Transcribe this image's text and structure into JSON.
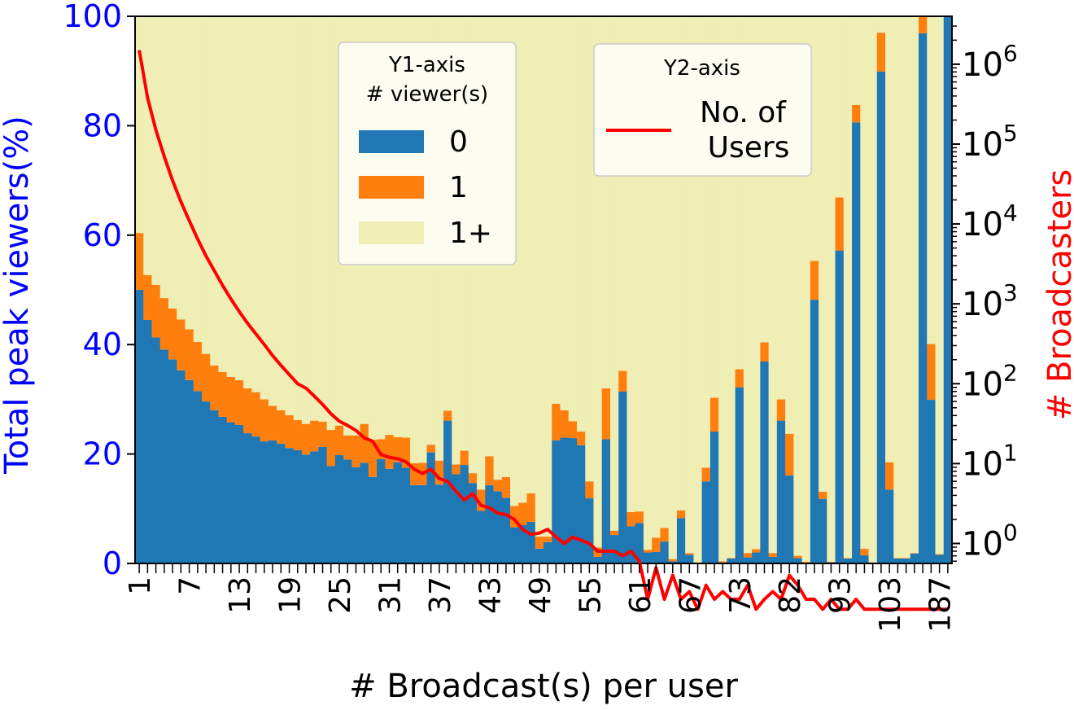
{
  "chart_data": {
    "type": "bar",
    "stacked": true,
    "xlabel": "# Broadcast(s) per user",
    "ylabel": "Total peak viewers(%)",
    "y2label": "# Broadcasters",
    "ylim": [
      0,
      100
    ],
    "y2lim_log10": [
      -0.25,
      6.6
    ],
    "y2scale": "log",
    "x_tick_labels": [
      "1",
      "7",
      "13",
      "19",
      "25",
      "31",
      "37",
      "43",
      "49",
      "55",
      "61",
      "67",
      "73",
      "82",
      "93",
      "103",
      "187"
    ],
    "x_tick_positions": [
      0,
      6,
      12,
      18,
      24,
      30,
      36,
      42,
      48,
      54,
      60,
      66,
      72,
      78,
      84,
      90,
      96
    ],
    "series": [
      {
        "name": "0",
        "color": "#1f77b4",
        "values": [
          50,
          44.5,
          41.3,
          39.1,
          37.3,
          35.3,
          33.5,
          31.5,
          29.6,
          28,
          26.8,
          25.8,
          25.3,
          23.8,
          23.2,
          22.3,
          22.5,
          21.9,
          21.1,
          20.7,
          19.9,
          20.5,
          21.3,
          17.8,
          19.8,
          19,
          17.6,
          18.4,
          15.8,
          19.1,
          17.3,
          18.5,
          17.5,
          14.3,
          14.3,
          20.3,
          14.4,
          26.1,
          16.3,
          18,
          14.7,
          9.6,
          14.3,
          13.2,
          12,
          6.6,
          7,
          7.6,
          2.7,
          3.9,
          22.5,
          23,
          22.9,
          21.6,
          11.9,
          1.2,
          22.7,
          5.2,
          31.4,
          6.8,
          7.4,
          2,
          2.1,
          4,
          0.4,
          8.3,
          1.6,
          0.1,
          15,
          24.1,
          0.2,
          0.9,
          32.2,
          1.1,
          2,
          36.9,
          1.2,
          26.1,
          16.1,
          1,
          0.1,
          48.2,
          11.8,
          0.2,
          57.2,
          0.9,
          80.6,
          1.5,
          0.1,
          89.9,
          13.5,
          0.9,
          0.9,
          1.8,
          96.9,
          29.9,
          1.6,
          100
        ]
      },
      {
        "name": "1",
        "color": "#ff7f0e",
        "values": [
          10.4,
          8.2,
          9.6,
          9.4,
          9.3,
          9.3,
          9.3,
          9,
          8.7,
          8.2,
          8.2,
          8.3,
          8.2,
          8.2,
          8.1,
          7.7,
          6.3,
          6.1,
          6,
          5.5,
          5.6,
          5.6,
          4.6,
          6.6,
          5.4,
          4.4,
          5.8,
          7.1,
          6.8,
          3.6,
          6.2,
          4.6,
          5.5,
          4,
          4.1,
          1.4,
          4.4,
          1.8,
          1.8,
          2.6,
          1.8,
          3.9,
          5.3,
          2.1,
          3.8,
          3.9,
          4.1,
          5.2,
          2.2,
          1,
          6.7,
          5,
          3.1,
          2.5,
          3.1,
          1.7,
          9.3,
          0.8,
          3.8,
          2.6,
          2.1,
          0.5,
          2.6,
          2.5,
          0.4,
          1.4,
          0.3,
          0.1,
          2.5,
          6.2,
          0.2,
          0.1,
          3.3,
          0.8,
          0.6,
          3.5,
          0.7,
          3.9,
          7.6,
          0.4,
          0.2,
          7.1,
          1.3,
          0.1,
          9.7,
          0.1,
          3.2,
          1.2,
          0.1,
          7.1,
          5,
          0.1,
          0.1,
          0.1,
          3.1,
          10.2,
          0.1,
          0
        ]
      },
      {
        "name": "1+",
        "color": "#eeeeb5",
        "values": [
          39.6,
          47.3,
          49.1,
          51.5,
          53.4,
          55.4,
          57.2,
          59.5,
          61.7,
          63.8,
          65,
          65.9,
          66.5,
          68,
          68.7,
          70,
          71.2,
          72,
          72.9,
          73.8,
          74.5,
          73.9,
          74.1,
          75.6,
          74.8,
          76.6,
          76.6,
          74.5,
          77.4,
          77.3,
          76.5,
          76.9,
          77,
          81.7,
          81.6,
          78.3,
          81.2,
          72.1,
          81.9,
          79.4,
          83.5,
          86.5,
          80.4,
          84.7,
          84.2,
          89.5,
          88.9,
          87.2,
          95.1,
          95.1,
          70.8,
          72,
          74,
          75.9,
          85,
          97.1,
          68,
          94,
          64.8,
          90.6,
          90.5,
          97.5,
          95.3,
          93.5,
          99.2,
          90.3,
          98.1,
          99.8,
          82.5,
          69.7,
          99.6,
          99,
          64.5,
          98.1,
          97.4,
          59.6,
          98.1,
          70,
          76.3,
          98.6,
          99.7,
          44.7,
          86.9,
          99.7,
          33.1,
          99,
          16.2,
          97.3,
          99.8,
          3,
          81.5,
          99,
          99,
          98.1,
          0,
          59.9,
          98.3,
          0
        ]
      },
      {
        "name": "No. of Users",
        "axis": "y2",
        "color": "#ff0000",
        "values": [
          1500000,
          380000,
          150000,
          70000,
          35000,
          19000,
          11000,
          6500,
          4000,
          2600,
          1700,
          1150,
          800,
          570,
          420,
          310,
          225,
          170,
          130,
          100,
          88,
          70,
          55,
          42,
          34,
          30,
          26,
          21,
          19,
          13,
          12,
          11.5,
          10.5,
          8.5,
          7.5,
          8.5,
          6.5,
          6,
          4.5,
          3.5,
          4.2,
          3,
          2.8,
          2.4,
          2.3,
          2,
          1.5,
          1.3,
          1.35,
          1.5,
          1.2,
          1,
          1.2,
          1.1,
          1,
          0.8,
          0.8,
          0.8,
          0.7,
          0.8,
          0.6,
          0.2,
          0.5,
          0.2,
          0.4,
          0.2,
          0.25,
          0.15,
          0.3,
          0.2,
          0.25,
          0.2,
          0.2,
          0.3,
          0.15,
          0.2,
          0.25,
          0.2,
          0.4,
          0.3,
          0.2,
          0.2,
          0.15,
          0.2,
          0.15,
          0.15,
          0.2,
          0.15,
          0.15,
          0.15,
          0.15,
          0.15,
          0.15,
          0.15,
          0.15,
          0.15,
          0.15,
          0.15
        ]
      }
    ],
    "legend_y1": {
      "title": "Y1-axis\n# viewer(s)",
      "entries": [
        "0",
        "1",
        "1+"
      ],
      "placement": "top-center"
    },
    "legend_y2": {
      "title": "Y2-axis",
      "entries": [
        "No. of\nUsers"
      ],
      "placement": "top-right"
    }
  }
}
